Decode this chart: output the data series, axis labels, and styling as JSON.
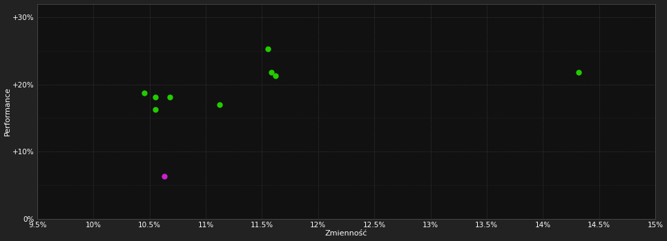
{
  "background_color": "#222222",
  "plot_bg_color": "#111111",
  "grid_color": "#444444",
  "text_color": "#ffffff",
  "xlabel": "Zmienność",
  "ylabel": "Performance",
  "xlim": [
    0.095,
    0.15
  ],
  "ylim": [
    0.0,
    0.32
  ],
  "xticks": [
    0.095,
    0.1,
    0.105,
    0.11,
    0.115,
    0.12,
    0.125,
    0.13,
    0.135,
    0.14,
    0.145,
    0.15
  ],
  "xtick_labels": [
    "9.5%",
    "10%",
    "10.5%",
    "11%",
    "11.5%",
    "12%",
    "12.5%",
    "13%",
    "13.5%",
    "14%",
    "14.5%",
    "15%"
  ],
  "yticks": [
    0.0,
    0.1,
    0.2,
    0.3
  ],
  "ytick_labels": [
    "0%",
    "+10%",
    "+20%",
    "+30%"
  ],
  "green_points": [
    [
      0.1045,
      0.187
    ],
    [
      0.1055,
      0.181
    ],
    [
      0.1068,
      0.181
    ],
    [
      0.1055,
      0.163
    ],
    [
      0.1112,
      0.17
    ],
    [
      0.1155,
      0.253
    ],
    [
      0.1158,
      0.218
    ],
    [
      0.1162,
      0.213
    ],
    [
      0.1432,
      0.218
    ]
  ],
  "magenta_points": [
    [
      0.1063,
      0.063
    ]
  ],
  "green_color": "#22cc00",
  "magenta_color": "#cc22cc",
  "marker_size": 25,
  "font_size_axis_label": 8,
  "font_size_tick": 7.5
}
